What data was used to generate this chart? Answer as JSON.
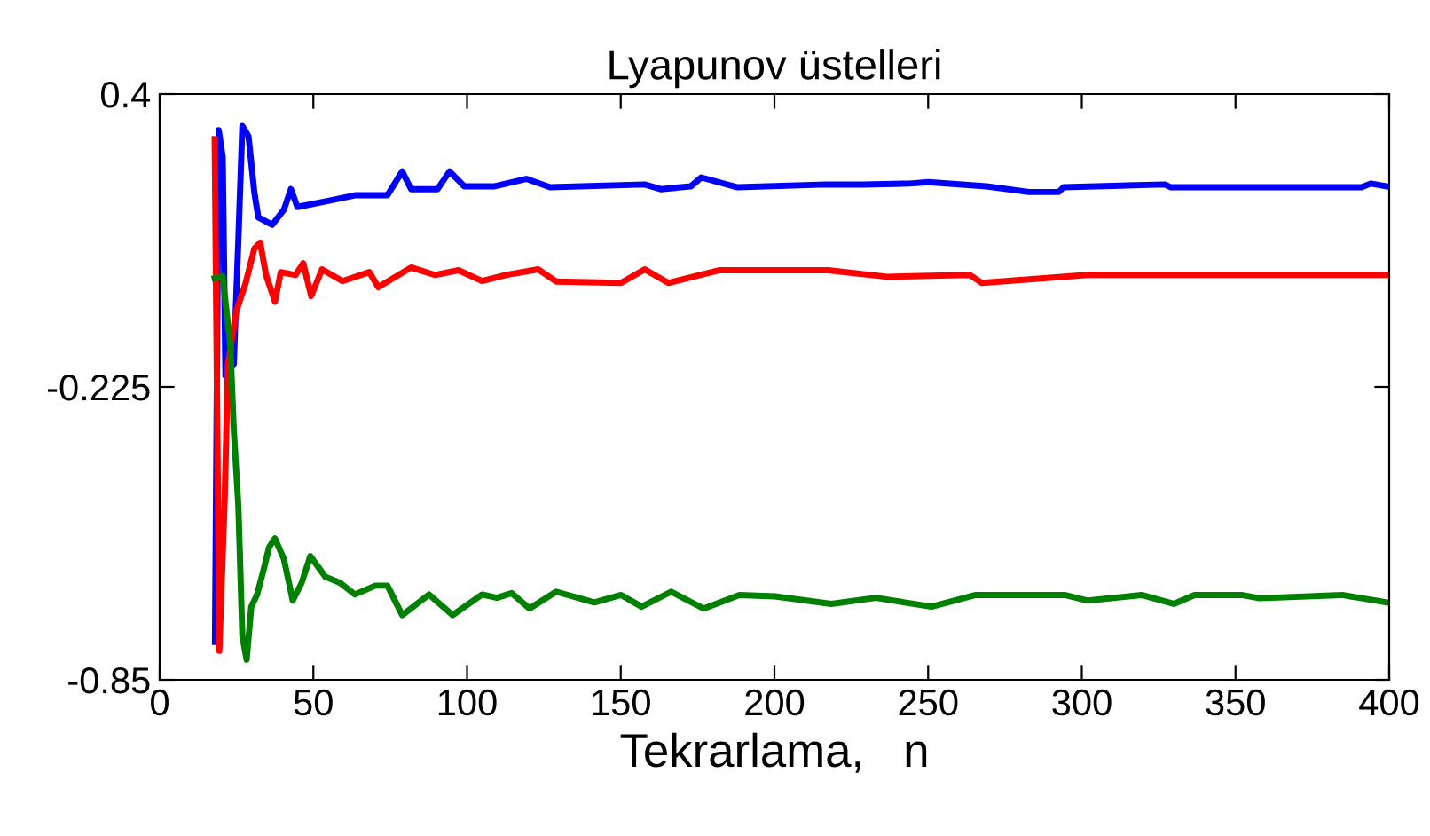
{
  "chart_data": {
    "type": "line",
    "title": "Lyapunov üstelleri",
    "xlabel": "Tekrarlama,   n",
    "xlim": [
      0,
      400
    ],
    "ylim": [
      -0.85,
      0.4
    ],
    "xticks": [
      0,
      50,
      100,
      150,
      200,
      250,
      300,
      350,
      400
    ],
    "yticks": [
      0.4,
      -0.225,
      -0.85
    ],
    "grid": false,
    "legend": false,
    "marker": "none",
    "line_style": "solid",
    "series": [
      {
        "color": "#0000ff",
        "x": [
          18,
          19.2,
          20.5,
          21.4,
          24.1,
          25.6,
          26.9,
          28.9,
          30.8,
          32.1,
          36.6,
          40.4,
          42.7,
          44.8,
          54.8,
          63.5,
          74.1,
          78.9,
          81.8,
          90.4,
          94.3,
          99.1,
          108.7,
          119.3,
          127,
          157.8,
          163,
          172.8,
          176.2,
          188,
          217,
          228.9,
          244,
          250,
          269,
          282.8,
          292.5,
          294,
          327,
          329,
          391,
          394,
          399.3
        ],
        "values": [
          -0.769,
          0.323,
          0.266,
          -0.201,
          -0.176,
          0.089,
          0.332,
          0.31,
          0.19,
          0.137,
          0.121,
          0.153,
          0.197,
          0.159,
          0.172,
          0.184,
          0.184,
          0.235,
          0.197,
          0.197,
          0.235,
          0.203,
          0.203,
          0.219,
          0.201,
          0.207,
          0.197,
          0.203,
          0.222,
          0.201,
          0.207,
          0.207,
          0.209,
          0.212,
          0.203,
          0.191,
          0.191,
          0.201,
          0.207,
          0.201,
          0.201,
          0.209,
          0.203
        ]
      },
      {
        "color": "#ff0000",
        "x": [
          17.9,
          19.4,
          21.2,
          22.2,
          25,
          27.9,
          30.8,
          32.7,
          34.6,
          37.5,
          39.4,
          44.2,
          46.7,
          49.3,
          52.8,
          59.5,
          68.2,
          71.1,
          81.8,
          89.5,
          97.2,
          104.9,
          112.6,
          123.1,
          129,
          150.1,
          157.8,
          165.5,
          181.9,
          217.4,
          236.7,
          263.6,
          267.5,
          302,
          399.3
        ],
        "values": [
          0.304,
          -0.788,
          -0.453,
          -0.176,
          -0.062,
          -0.005,
          0.07,
          0.083,
          0.014,
          -0.043,
          0.02,
          0.014,
          0.039,
          -0.031,
          0.026,
          0.001,
          0.02,
          -0.012,
          0.03,
          0.014,
          0.024,
          0.001,
          0.014,
          0.026,
          0.0,
          -0.003,
          0.026,
          -0.003,
          0.024,
          0.024,
          0.01,
          0.014,
          -0.003,
          0.014,
          0.014
        ]
      },
      {
        "color": "#008000",
        "x": [
          17.9,
          20.5,
          23,
          24.1,
          25.6,
          26.9,
          28.3,
          29.8,
          31.7,
          33.7,
          35.6,
          37.5,
          40.4,
          43.3,
          46.2,
          49,
          53.9,
          58.7,
          63.5,
          70.2,
          74.1,
          78.9,
          87.6,
          95.3,
          104.9,
          109.7,
          114.5,
          120.3,
          129,
          141.4,
          150.1,
          156.8,
          166.4,
          177,
          188.6,
          200.2,
          218.5,
          233,
          251.1,
          265.5,
          294.4,
          302,
          319.4,
          329.9,
          336.7,
          352,
          357.8,
          384.7,
          399.3
        ],
        "values": [
          0.007,
          0.011,
          -0.138,
          -0.315,
          -0.479,
          -0.757,
          -0.807,
          -0.694,
          -0.668,
          -0.618,
          -0.567,
          -0.548,
          -0.592,
          -0.681,
          -0.643,
          -0.586,
          -0.63,
          -0.643,
          -0.668,
          -0.649,
          -0.649,
          -0.712,
          -0.668,
          -0.712,
          -0.668,
          -0.675,
          -0.665,
          -0.698,
          -0.662,
          -0.685,
          -0.669,
          -0.694,
          -0.662,
          -0.698,
          -0.669,
          -0.672,
          -0.688,
          -0.675,
          -0.694,
          -0.669,
          -0.669,
          -0.681,
          -0.669,
          -0.688,
          -0.669,
          -0.669,
          -0.676,
          -0.669,
          -0.685
        ]
      }
    ]
  }
}
